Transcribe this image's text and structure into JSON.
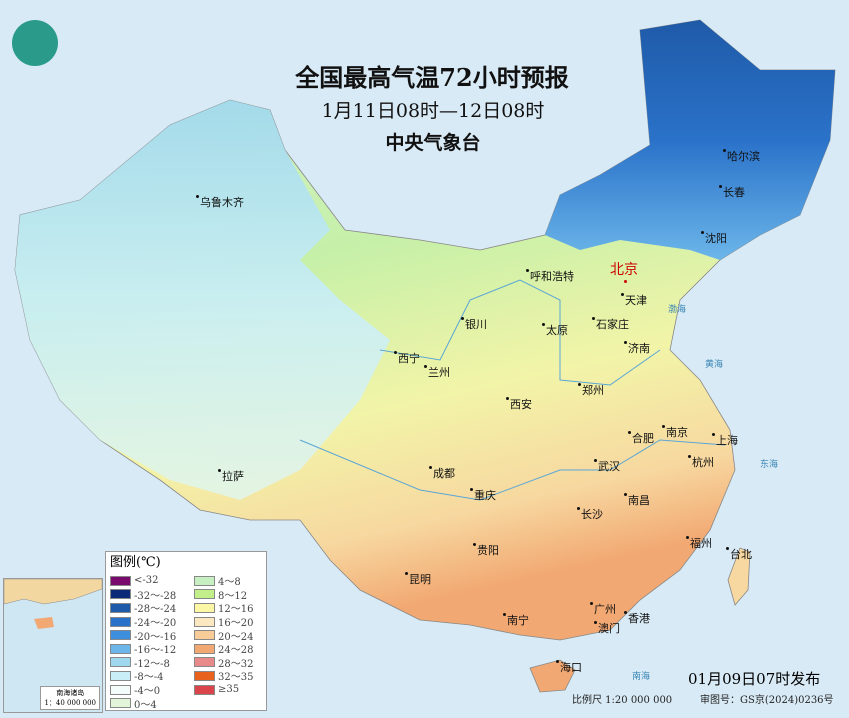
{
  "header": {
    "title": "全国最高气温72小时预报",
    "period": "1月11日08时—12日08时",
    "issuer": "中央气象台"
  },
  "cities": [
    {
      "name": "乌鲁木齐"
    },
    {
      "name": "哈尔滨"
    },
    {
      "name": "长春"
    },
    {
      "name": "沈阳"
    },
    {
      "name": "呼和浩特"
    },
    {
      "name": "北京",
      "capital": true
    },
    {
      "name": "天津"
    },
    {
      "name": "银川"
    },
    {
      "name": "太原"
    },
    {
      "name": "石家庄"
    },
    {
      "name": "西宁"
    },
    {
      "name": "兰州"
    },
    {
      "name": "济南"
    },
    {
      "name": "西安"
    },
    {
      "name": "郑州"
    },
    {
      "name": "合肥"
    },
    {
      "name": "南京"
    },
    {
      "name": "上海"
    },
    {
      "name": "拉萨"
    },
    {
      "name": "成都"
    },
    {
      "name": "武汉"
    },
    {
      "name": "杭州"
    },
    {
      "name": "重庆"
    },
    {
      "name": "南昌"
    },
    {
      "name": "长沙"
    },
    {
      "name": "福州"
    },
    {
      "name": "台北"
    },
    {
      "name": "贵阳"
    },
    {
      "name": "昆明"
    },
    {
      "name": "南宁"
    },
    {
      "name": "广州"
    },
    {
      "name": "澳门"
    },
    {
      "name": "香港"
    },
    {
      "name": "海口"
    }
  ],
  "seas": [
    "渤海",
    "黄海",
    "东海",
    "南海"
  ],
  "legend": {
    "title": "图例(℃)",
    "items": [
      {
        "label": "<-32",
        "color": "#7a0a6e"
      },
      {
        "label": "-32～-28",
        "color": "#0b2a78"
      },
      {
        "label": "-28～-24",
        "color": "#1f5aa8"
      },
      {
        "label": "-24～-20",
        "color": "#2a72c9"
      },
      {
        "label": "-20～-16",
        "color": "#3d8fde"
      },
      {
        "label": "-16～-12",
        "color": "#6cb6ea"
      },
      {
        "label": "-12～-8",
        "color": "#9fd8ee"
      },
      {
        "label": "-8～-4",
        "color": "#c9eef8"
      },
      {
        "label": "-4～0",
        "color": "#f4fbfb"
      },
      {
        "label": "0～4",
        "color": "#e2f5d8"
      },
      {
        "label": "4～8",
        "color": "#c6f0c2"
      },
      {
        "label": "8～12",
        "color": "#c2ef8a"
      },
      {
        "label": "12～16",
        "color": "#fbf7a4"
      },
      {
        "label": "16～20",
        "color": "#fbe7c0"
      },
      {
        "label": "20～24",
        "color": "#f7cc98"
      },
      {
        "label": "24～28",
        "color": "#f2a872"
      },
      {
        "label": "28～32",
        "color": "#e98a8a"
      },
      {
        "label": "32～35",
        "color": "#e8621e"
      },
      {
        "label": "≥35",
        "color": "#d9454a"
      }
    ]
  },
  "inset": {
    "title": "南海诸岛",
    "scale": "1：40 000 000"
  },
  "footer": {
    "published": "01月09日07时发布",
    "scale": "比例尺 1:20 000 000",
    "approval": "审图号：GS京(2024)0236号"
  }
}
